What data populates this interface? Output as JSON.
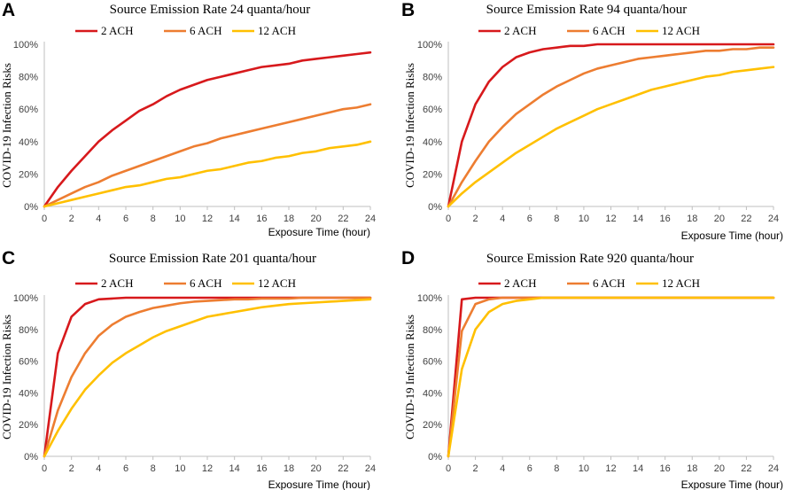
{
  "colors": {
    "2 ACH": "#d7191c",
    "6 ACH": "#ed7d31",
    "12 ACH": "#ffc000"
  },
  "chart_data": [
    {
      "panel": "A",
      "type": "line",
      "title": "Source Emission Rate 24 quanta/hour",
      "xlabel": "Exposure Time (hour)",
      "ylabel": "COVID-19 Infection Risks",
      "x": [
        0,
        1,
        2,
        3,
        4,
        5,
        6,
        7,
        8,
        9,
        10,
        11,
        12,
        13,
        14,
        15,
        16,
        17,
        18,
        19,
        20,
        21,
        22,
        23,
        24
      ],
      "xticks": [
        "0",
        "2",
        "4",
        "6",
        "8",
        "10",
        "12",
        "14",
        "16",
        "18",
        "20",
        "22",
        "24"
      ],
      "yticks": [
        "0%",
        "20%",
        "40%",
        "60%",
        "80%",
        "100%"
      ],
      "xlim": [
        0,
        24
      ],
      "ylim": [
        0,
        100
      ],
      "series": [
        {
          "name": "2 ACH",
          "values": [
            0,
            12,
            22,
            31,
            40,
            47,
            53,
            59,
            63,
            68,
            72,
            75,
            78,
            80,
            82,
            84,
            86,
            87,
            88,
            90,
            91,
            92,
            93,
            94,
            95
          ]
        },
        {
          "name": "6 ACH",
          "values": [
            0,
            4,
            8,
            12,
            15,
            19,
            22,
            25,
            28,
            31,
            34,
            37,
            39,
            42,
            44,
            46,
            48,
            50,
            52,
            54,
            56,
            58,
            60,
            61,
            63
          ]
        },
        {
          "name": "12 ACH",
          "values": [
            0,
            2,
            4,
            6,
            8,
            10,
            12,
            13,
            15,
            17,
            18,
            20,
            22,
            23,
            25,
            27,
            28,
            30,
            31,
            33,
            34,
            36,
            37,
            38,
            40
          ]
        }
      ]
    },
    {
      "panel": "B",
      "type": "line",
      "title": "Source Emission Rate 94 quanta/hour",
      "xlabel": "Exposure Time (hour)",
      "ylabel": "COVID-19 Infection Risks",
      "x": [
        0,
        1,
        2,
        3,
        4,
        5,
        6,
        7,
        8,
        9,
        10,
        11,
        12,
        13,
        14,
        15,
        16,
        17,
        18,
        19,
        20,
        21,
        22,
        23,
        24
      ],
      "xticks": [
        "0",
        "2",
        "4",
        "6",
        "8",
        "10",
        "12",
        "14",
        "16",
        "18",
        "20",
        "22",
        "24"
      ],
      "yticks": [
        "0%",
        "20%",
        "40%",
        "60%",
        "80%",
        "100%"
      ],
      "xlim": [
        0,
        24
      ],
      "ylim": [
        0,
        100
      ],
      "series": [
        {
          "name": "2 ACH",
          "values": [
            0,
            40,
            63,
            77,
            86,
            92,
            95,
            97,
            98,
            99,
            99,
            100,
            100,
            100,
            100,
            100,
            100,
            100,
            100,
            100,
            100,
            100,
            100,
            100,
            100
          ]
        },
        {
          "name": "6 ACH",
          "values": [
            0,
            15,
            28,
            40,
            49,
            57,
            63,
            69,
            74,
            78,
            82,
            85,
            87,
            89,
            91,
            92,
            93,
            94,
            95,
            96,
            96,
            97,
            97,
            98,
            98
          ]
        },
        {
          "name": "12 ACH",
          "values": [
            0,
            8,
            15,
            21,
            27,
            33,
            38,
            43,
            48,
            52,
            56,
            60,
            63,
            66,
            69,
            72,
            74,
            76,
            78,
            80,
            81,
            83,
            84,
            85,
            86
          ]
        }
      ]
    },
    {
      "panel": "C",
      "type": "line",
      "title": "Source Emission Rate 201 quanta/hour",
      "xlabel": "Exposure Time (hour)",
      "ylabel": "COVID-19 Infection Risks",
      "x": [
        0,
        1,
        2,
        3,
        4,
        5,
        6,
        7,
        8,
        9,
        10,
        11,
        12,
        13,
        14,
        15,
        16,
        17,
        18,
        19,
        20,
        21,
        22,
        23,
        24
      ],
      "xticks": [
        "0",
        "2",
        "4",
        "6",
        "8",
        "10",
        "12",
        "14",
        "16",
        "18",
        "20",
        "22",
        "24"
      ],
      "yticks": [
        "0%",
        "20%",
        "40%",
        "60%",
        "80%",
        "100%"
      ],
      "xlim": [
        0,
        24
      ],
      "ylim": [
        0,
        100
      ],
      "series": [
        {
          "name": "2 ACH",
          "values": [
            0,
            65,
            88,
            96,
            99,
            99.5,
            100,
            100,
            100,
            100,
            100,
            100,
            100,
            100,
            100,
            100,
            100,
            100,
            100,
            100,
            100,
            100,
            100,
            100,
            100
          ]
        },
        {
          "name": "6 ACH",
          "values": [
            0,
            29,
            50,
            65,
            76,
            83,
            88,
            91,
            93.5,
            95,
            96.5,
            97.5,
            98,
            98.5,
            99,
            99,
            99.5,
            99.5,
            99.5,
            100,
            100,
            100,
            100,
            100,
            100
          ]
        },
        {
          "name": "12 ACH",
          "values": [
            0,
            16,
            30,
            42,
            51,
            59,
            65,
            70,
            75,
            79,
            82,
            85,
            88,
            89.5,
            91,
            92.5,
            94,
            95,
            96,
            96.5,
            97,
            97.5,
            98,
            98.5,
            99
          ]
        }
      ]
    },
    {
      "panel": "D",
      "type": "line",
      "title": "Source Emission Rate 920 quanta/hour",
      "xlabel": "Exposure Time (hour)",
      "ylabel": "COVID-19 Infection Risks",
      "x": [
        0,
        1,
        2,
        3,
        4,
        5,
        6,
        7,
        8,
        9,
        10,
        11,
        12,
        13,
        14,
        15,
        16,
        17,
        18,
        19,
        20,
        21,
        22,
        23,
        24
      ],
      "xticks": [
        "0",
        "2",
        "4",
        "6",
        "8",
        "10",
        "12",
        "14",
        "16",
        "18",
        "20",
        "22",
        "24"
      ],
      "yticks": [
        "0%",
        "20%",
        "40%",
        "60%",
        "80%",
        "100%"
      ],
      "xlim": [
        0,
        24
      ],
      "ylim": [
        0,
        100
      ],
      "series": [
        {
          "name": "2 ACH",
          "values": [
            0,
            99,
            100,
            100,
            100,
            100,
            100,
            100,
            100,
            100,
            100,
            100,
            100,
            100,
            100,
            100,
            100,
            100,
            100,
            100,
            100,
            100,
            100,
            100,
            100
          ]
        },
        {
          "name": "6 ACH",
          "values": [
            0,
            79,
            96,
            99,
            100,
            100,
            100,
            100,
            100,
            100,
            100,
            100,
            100,
            100,
            100,
            100,
            100,
            100,
            100,
            100,
            100,
            100,
            100,
            100,
            100
          ]
        },
        {
          "name": "12 ACH",
          "values": [
            0,
            55,
            80,
            91,
            96,
            98,
            99,
            100,
            100,
            100,
            100,
            100,
            100,
            100,
            100,
            100,
            100,
            100,
            100,
            100,
            100,
            100,
            100,
            100,
            100
          ]
        }
      ]
    }
  ]
}
